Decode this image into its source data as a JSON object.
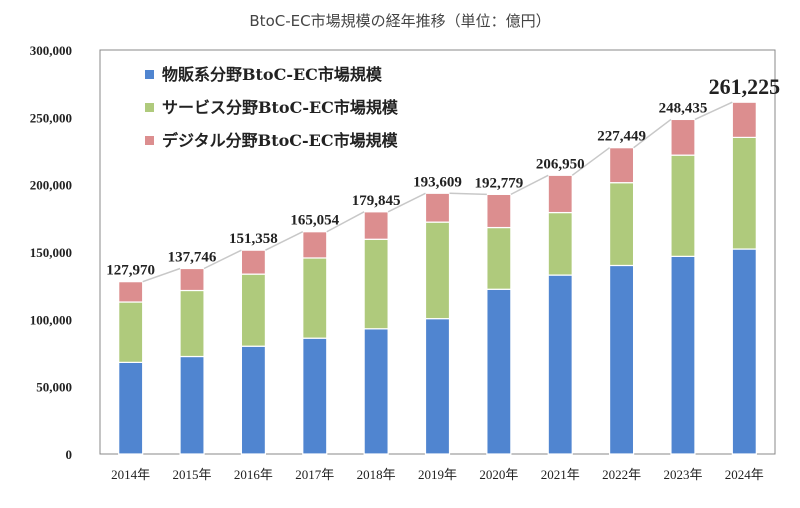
{
  "title": "BtoC-EC市場規模の経年推移（単位：億円）",
  "colors": {
    "physical": "#5085d0",
    "service": "#afca7c",
    "digital": "#dc8e8f",
    "line": "#c8c8c8",
    "axis": "#888888"
  },
  "legend": [
    {
      "label": "物販系分野BtoC-EC市場規模",
      "color": "#5085d0"
    },
    {
      "label": "サービス分野BtoC-EC市場規模",
      "color": "#afca7c"
    },
    {
      "label": "デジタル分野BtoC-EC市場規模",
      "color": "#dc8e8f"
    }
  ],
  "chart_data": {
    "type": "bar",
    "stacked": true,
    "title": "BtoC-EC市場規模の経年推移（単位：億円）",
    "xlabel": "",
    "ylabel": "",
    "ylim": [
      0,
      300000
    ],
    "yticks": [
      0,
      50000,
      100000,
      150000,
      200000,
      250000,
      300000
    ],
    "ytick_labels": [
      "0",
      "50,000",
      "100,000",
      "150,000",
      "200,000",
      "250,000",
      "300,000"
    ],
    "categories": [
      "2014年",
      "2015年",
      "2016年",
      "2017年",
      "2018年",
      "2019年",
      "2020年",
      "2021年",
      "2022年",
      "2023年",
      "2024年"
    ],
    "series": [
      {
        "name": "物販系分野BtoC-EC市場規模",
        "values": [
          68043,
          72398,
          80043,
          86008,
          92992,
          100515,
          122333,
          132865,
          139997,
          146760,
          152194
        ]
      },
      {
        "name": "サービス分野BtoC-EC市場規模",
        "values": [
          44816,
          49014,
          53532,
          59568,
          66471,
          71672,
          45832,
          46424,
          61477,
          75169,
          82900
        ]
      },
      {
        "name": "デジタル分野BtoC-EC市場規模",
        "values": [
          15111,
          16334,
          17782,
          19478,
          20382,
          21422,
          24614,
          27661,
          25974,
          26506,
          26131
        ]
      }
    ],
    "totals": [
      127970,
      137746,
      151358,
      165054,
      179845,
      193609,
      192779,
      206950,
      227449,
      248435,
      261225
    ],
    "total_labels": [
      "127,970",
      "137,746",
      "151,358",
      "165,054",
      "179,845",
      "193,609",
      "192,779",
      "206,950",
      "227,449",
      "248,435",
      "261,225"
    ],
    "legend_position": "upper-left inside",
    "grid": false
  }
}
